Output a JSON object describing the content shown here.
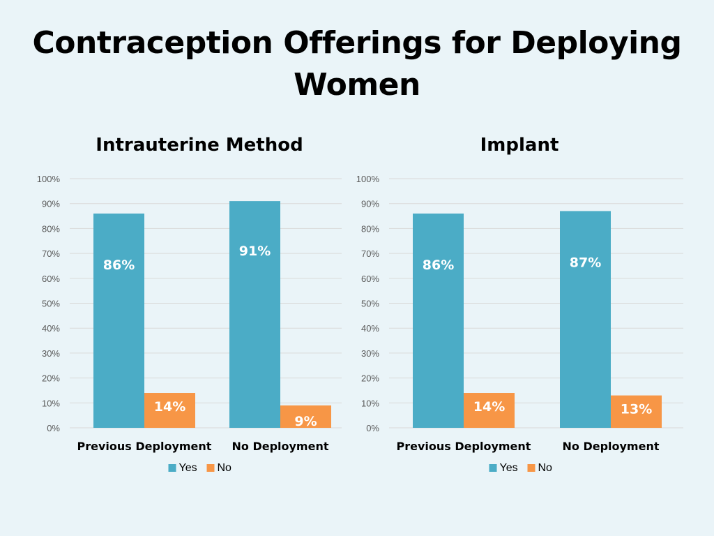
{
  "slide": {
    "title": "Contraception Offerings for Deploying Women"
  },
  "colors": {
    "yes": "#4bacc6",
    "no": "#f79646",
    "gridline": "#d9d9d9",
    "axis_text": "#595959",
    "label_text": "#ffffff",
    "category_text": "#000000",
    "background": "#eaf4f8"
  },
  "chart_data": [
    {
      "type": "bar",
      "title": "Intrauterine Method",
      "categories": [
        "Previous Deployment",
        "No Deployment"
      ],
      "series": [
        {
          "name": "Yes",
          "values": [
            86,
            91
          ],
          "labels": [
            "86%",
            "91%"
          ]
        },
        {
          "name": "No",
          "values": [
            14,
            9
          ],
          "labels": [
            "14%",
            "9%"
          ]
        }
      ],
      "ylim": [
        0,
        100
      ],
      "yticks": [
        "0%",
        "10%",
        "20%",
        "30%",
        "40%",
        "50%",
        "60%",
        "70%",
        "80%",
        "90%",
        "100%"
      ],
      "xlabel": "",
      "ylabel": "",
      "grid": true,
      "legend": "bottom"
    },
    {
      "type": "bar",
      "title": "Implant",
      "categories": [
        "Previous Deployment",
        "No Deployment"
      ],
      "series": [
        {
          "name": "Yes",
          "values": [
            86,
            87
          ],
          "labels": [
            "86%",
            "87%"
          ]
        },
        {
          "name": "No",
          "values": [
            14,
            13
          ],
          "labels": [
            "14%",
            "13%"
          ]
        }
      ],
      "ylim": [
        0,
        100
      ],
      "yticks": [
        "0%",
        "10%",
        "20%",
        "30%",
        "40%",
        "50%",
        "60%",
        "70%",
        "80%",
        "90%",
        "100%"
      ],
      "xlabel": "",
      "ylabel": "",
      "grid": true,
      "legend": "bottom"
    }
  ]
}
